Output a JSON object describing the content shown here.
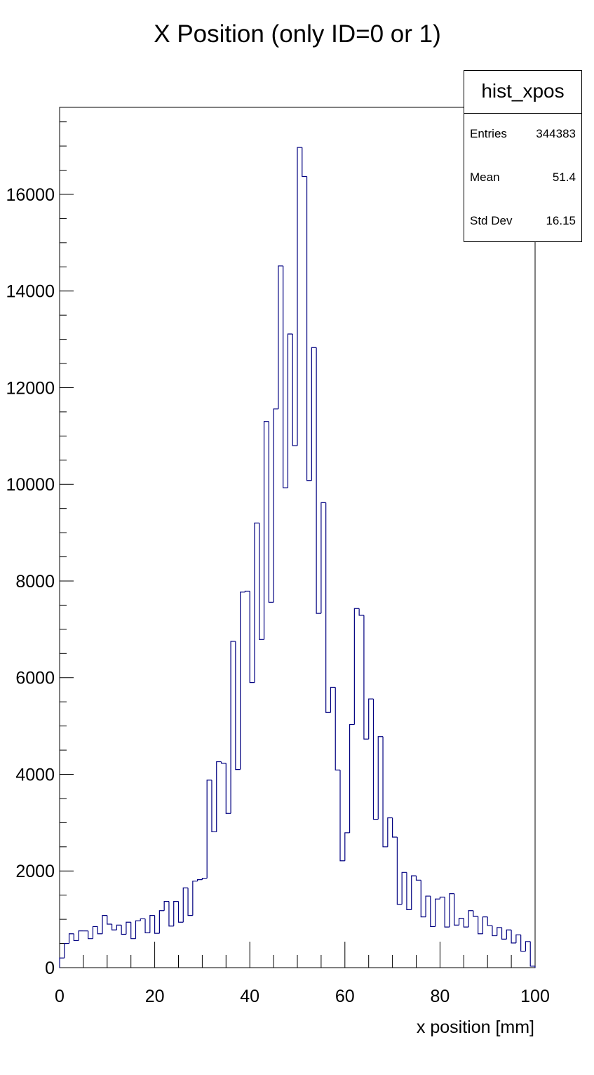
{
  "chart_data": {
    "type": "histogram",
    "title": "X Position (only ID=0 or 1)",
    "xlabel": "x position [mm]",
    "ylabel": "",
    "xlim": [
      0,
      100
    ],
    "ylim": [
      0,
      17800
    ],
    "x_ticks": [
      "0",
      "20",
      "40",
      "60",
      "80",
      "100"
    ],
    "y_ticks": [
      "0",
      "2000",
      "4000",
      "6000",
      "8000",
      "10000",
      "12000",
      "14000",
      "16000"
    ],
    "line_color": "#000080",
    "bin_width": 1,
    "bin_edges_start": 0,
    "counts": [
      200,
      500,
      700,
      560,
      760,
      760,
      600,
      850,
      700,
      1080,
      900,
      780,
      880,
      690,
      940,
      600,
      970,
      1010,
      720,
      1080,
      710,
      1180,
      1370,
      860,
      1370,
      940,
      1650,
      1080,
      1790,
      1820,
      1850,
      3880,
      2810,
      4260,
      4230,
      3190,
      6750,
      4100,
      7770,
      7790,
      5900,
      9200,
      6790,
      11300,
      7560,
      11560,
      14520,
      9930,
      13110,
      10800,
      16970,
      16370,
      10080,
      12830,
      7330,
      9620,
      5280,
      5800,
      4090,
      2210,
      2790,
      5030,
      7430,
      7290,
      4730,
      5560,
      3070,
      4780,
      2500,
      3100,
      2700,
      1310,
      1970,
      1200,
      1900,
      1810,
      1050,
      1480,
      850,
      1420,
      1460,
      840,
      1530,
      880,
      1020,
      840,
      1180,
      1060,
      700,
      1050,
      870,
      660,
      830,
      590,
      780,
      510,
      680,
      340,
      540,
      30
    ],
    "stats": {
      "name": "hist_xpos",
      "entries_label": "Entries",
      "entries": "344383",
      "mean_label": "Mean",
      "mean": "51.4",
      "stddev_label": "Std Dev",
      "stddev": "16.15"
    }
  }
}
